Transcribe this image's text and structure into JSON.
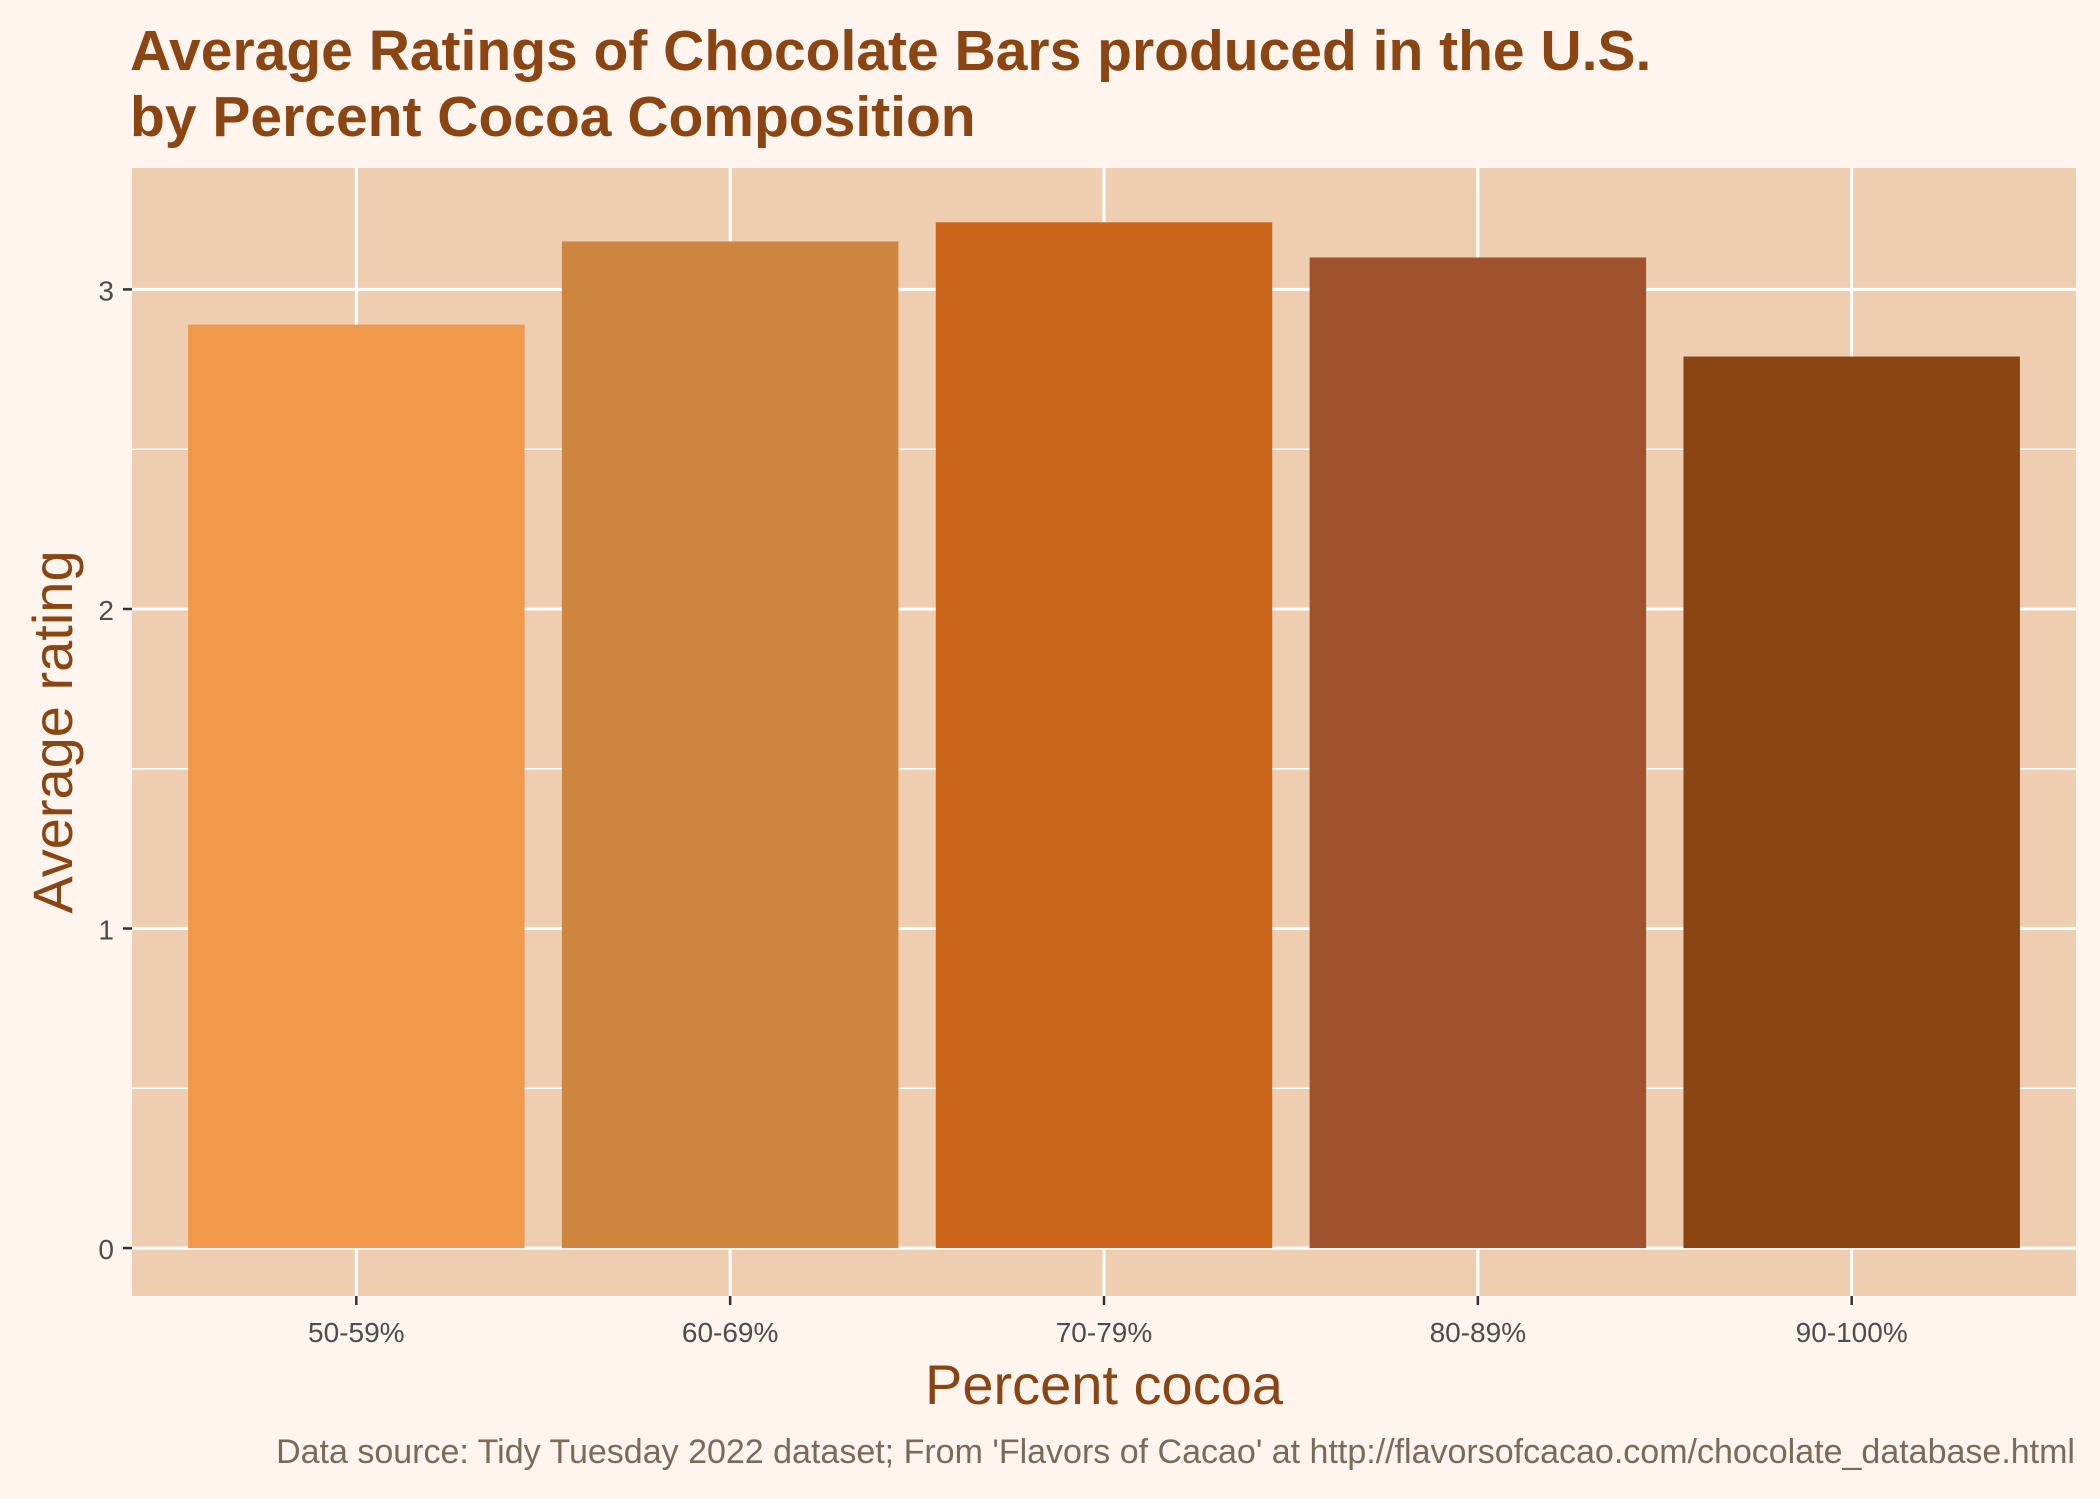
{
  "chart_data": {
    "type": "bar",
    "title_lines": [
      "Average Ratings of Chocolate Bars produced in the U.S.",
      "by Percent Cocoa Composition"
    ],
    "xlabel": "Percent cocoa",
    "ylabel": "Average rating",
    "caption": "Data source: Tidy Tuesday 2022 dataset; From 'Flavors of Cacao' at http://flavorsofcacao.com/chocolate_database.html",
    "categories": [
      "50-59%",
      "60-69%",
      "70-79%",
      "80-89%",
      "90-100%"
    ],
    "values": [
      2.89,
      3.15,
      3.21,
      3.1,
      2.79
    ],
    "bar_colors": [
      "#f0994a",
      "#cd853f",
      "#cb651c",
      "#a0522d",
      "#8b4513"
    ],
    "y_ticks": [
      0,
      1,
      2,
      3
    ],
    "ylim": [
      -0.15,
      3.38
    ],
    "grid": true,
    "legend": "none",
    "panel_background": "#eecdb0",
    "page_background": "#fff4ee",
    "title_color": "#8b4513"
  }
}
